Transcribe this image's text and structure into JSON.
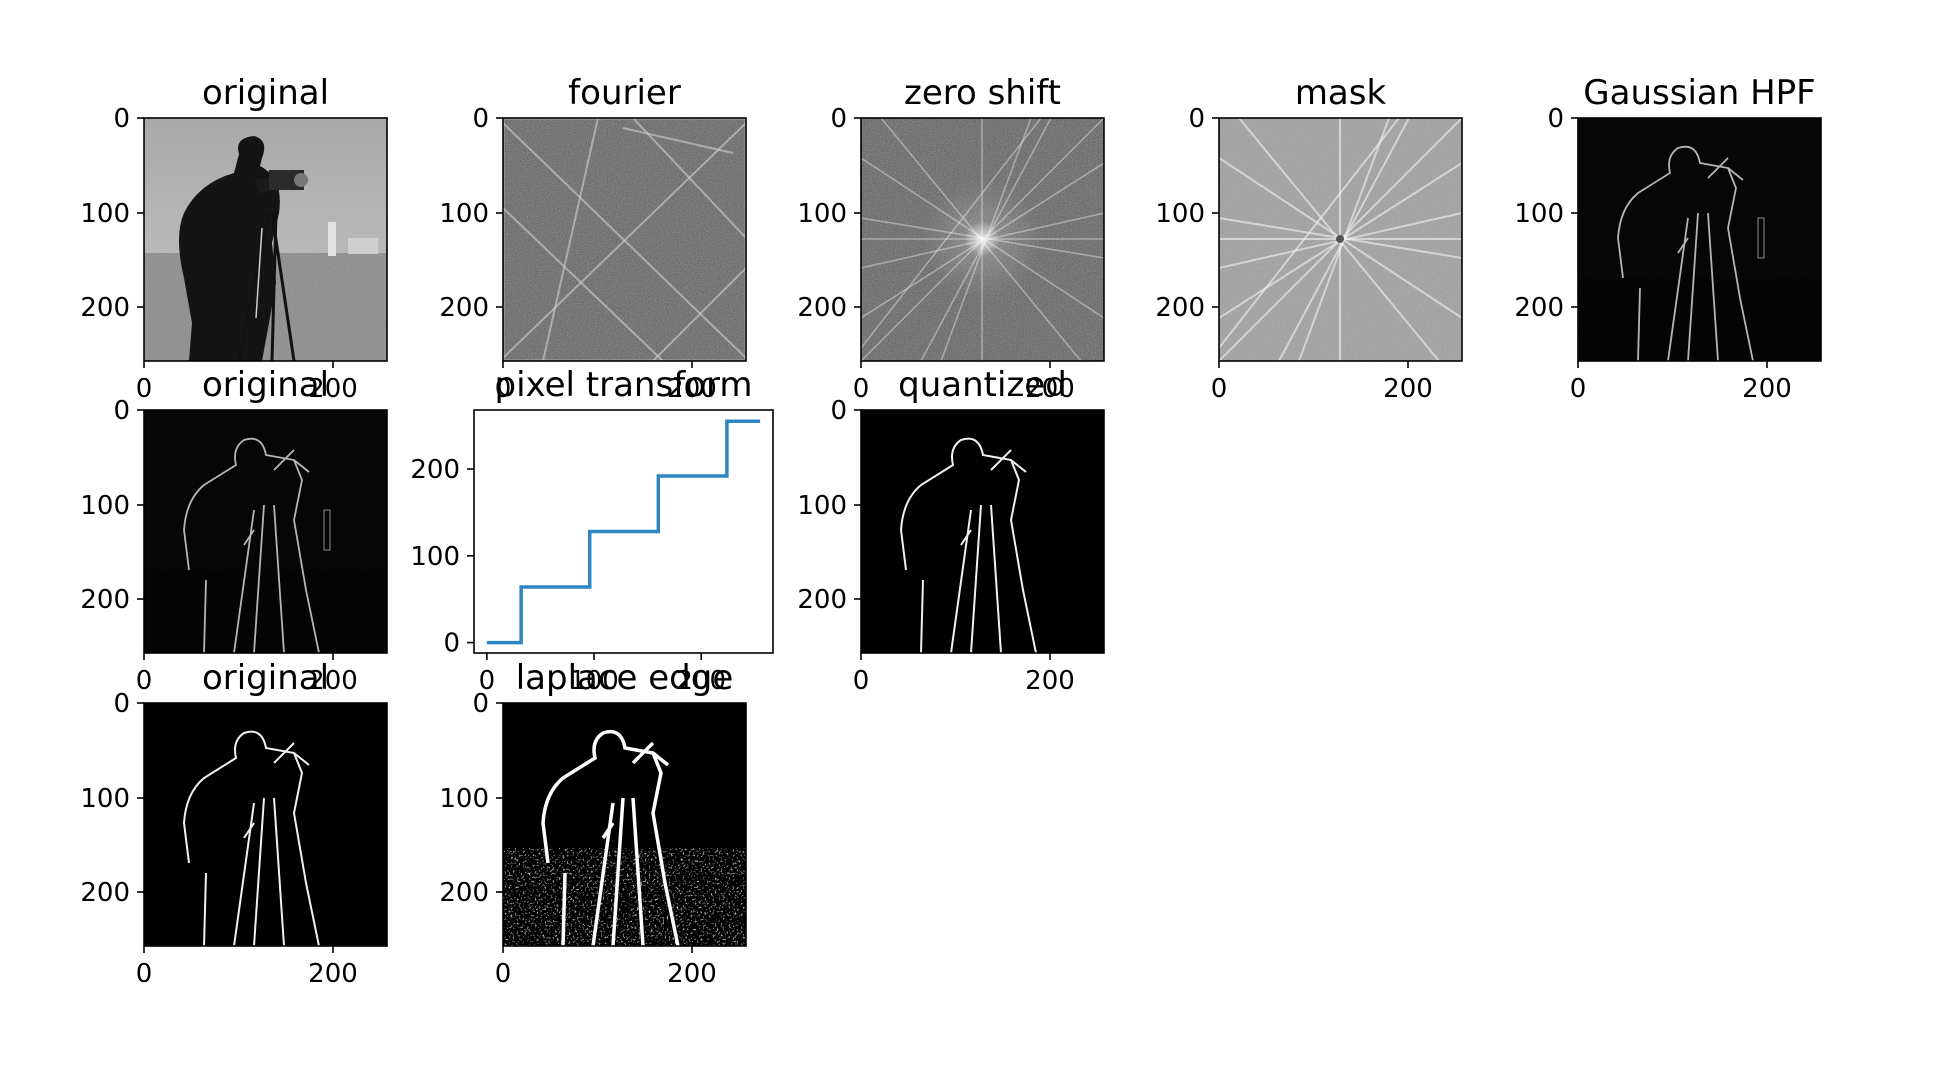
{
  "figure": {
    "background": "#ffffff",
    "axis_color": "#000000",
    "line_color": "#2e86c1"
  },
  "panels": [
    {
      "id": "p1",
      "title": "original",
      "kind": "image",
      "image": "cameraman-photo-grayscale",
      "xticks": [
        "0",
        "200"
      ],
      "yticks": [
        "0",
        "100",
        "200"
      ]
    },
    {
      "id": "p2",
      "title": "fourier",
      "kind": "image",
      "image": "fourier-spectrum-unshifted",
      "xticks": [
        "0",
        "200"
      ],
      "yticks": [
        "0",
        "100",
        "200"
      ]
    },
    {
      "id": "p3",
      "title": "zero shift",
      "kind": "image",
      "image": "fourier-spectrum-centered",
      "xticks": [
        "0",
        "200"
      ],
      "yticks": [
        "0",
        "100",
        "200"
      ]
    },
    {
      "id": "p4",
      "title": "mask",
      "kind": "image",
      "image": "masked-spectrum",
      "xticks": [
        "0",
        "200"
      ],
      "yticks": [
        "0",
        "100",
        "200"
      ]
    },
    {
      "id": "p5",
      "title": "Gaussian HPF",
      "kind": "image",
      "image": "highpass-edges",
      "xticks": [
        "0",
        "200"
      ],
      "yticks": [
        "0",
        "100",
        "200"
      ]
    },
    {
      "id": "p6",
      "title": "original",
      "kind": "image",
      "image": "highpass-edges",
      "xticks": [
        "0",
        "200"
      ],
      "yticks": [
        "0",
        "100",
        "200"
      ]
    },
    {
      "id": "p7",
      "title": "pixel transform",
      "kind": "line",
      "xticks": [
        "0",
        "100",
        "200"
      ],
      "yticks": [
        "0",
        "100",
        "200"
      ]
    },
    {
      "id": "p8",
      "title": "quantized",
      "kind": "image",
      "image": "quantized-edges",
      "xticks": [
        "0",
        "200"
      ],
      "yticks": [
        "0",
        "100",
        "200"
      ]
    },
    {
      "id": "p9",
      "title": "original",
      "kind": "image",
      "image": "quantized-edges",
      "xticks": [
        "0",
        "200"
      ],
      "yticks": [
        "0",
        "100",
        "200"
      ]
    },
    {
      "id": "p10",
      "title": "laplace edge",
      "kind": "image",
      "image": "laplace-edges",
      "xticks": [
        "0",
        "200"
      ],
      "yticks": [
        "0",
        "100",
        "200"
      ]
    }
  ],
  "chart_data": [
    {
      "type": "line",
      "title": "pixel transform",
      "xlabel": "",
      "ylabel": "",
      "xlim": [
        -12,
        267
      ],
      "ylim": [
        -12,
        268
      ],
      "xticks": [
        0,
        100,
        200
      ],
      "yticks": [
        0,
        100,
        200
      ],
      "grid": false,
      "series": [
        {
          "color": "#2e86c1",
          "x": [
            0,
            32,
            32,
            96,
            96,
            160,
            160,
            224,
            224,
            255
          ],
          "y": [
            0,
            0,
            64,
            64,
            128,
            128,
            192,
            192,
            255,
            255
          ]
        }
      ]
    }
  ]
}
